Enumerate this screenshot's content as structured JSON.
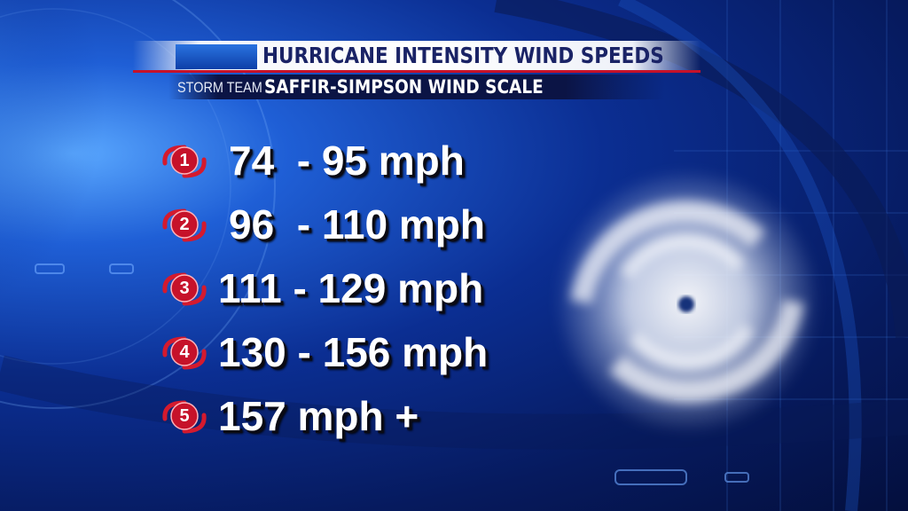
{
  "header": {
    "title": "HURRICANE INTENSITY WIND SPEEDS",
    "brand": "STORM TEAM",
    "subtitle": "SAFFIR-SIMPSON WIND SCALE"
  },
  "categories": [
    {
      "number": "1",
      "range": "74  - 95 mph"
    },
    {
      "number": "2",
      "range": "96  - 110 mph"
    },
    {
      "number": "3",
      "range": "111 - 129 mph"
    },
    {
      "number": "4",
      "range": "130 - 156 mph"
    },
    {
      "number": "5",
      "range": "157 mph +"
    }
  ],
  "icons": {
    "category_badge": "hurricane-symbol-icon",
    "background_storm": "hurricane-satellite-icon"
  },
  "colors": {
    "accent_red": "#c6122a",
    "title_text": "#1a2366",
    "background_blue": "#0b2e92"
  }
}
